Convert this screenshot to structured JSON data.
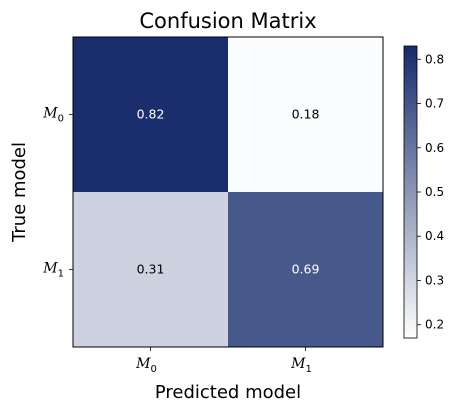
{
  "chart_data": {
    "type": "heatmap",
    "title": "Confusion Matrix",
    "xlabel": "Predicted model",
    "ylabel": "True model",
    "x_categories": [
      {
        "base": "M",
        "sub": "0"
      },
      {
        "base": "M",
        "sub": "1"
      }
    ],
    "y_categories": [
      {
        "base": "M",
        "sub": "0"
      },
      {
        "base": "M",
        "sub": "1"
      }
    ],
    "values": [
      [
        0.82,
        0.18
      ],
      [
        0.31,
        0.69
      ]
    ],
    "value_labels": [
      [
        "0.82",
        "0.18"
      ],
      [
        "0.31",
        "0.69"
      ]
    ],
    "colorbar": {
      "range": [
        0.17,
        0.83
      ],
      "ticks": [
        0.2,
        0.3,
        0.4,
        0.5,
        0.6,
        0.7,
        0.8
      ],
      "tick_labels": [
        "0.2",
        "0.3",
        "0.4",
        "0.5",
        "0.6",
        "0.7",
        "0.8"
      ]
    },
    "colors": {
      "low": "#ffffff",
      "high": "#162b6c",
      "text_light": "#ffffff",
      "text_dark": "#000000"
    }
  }
}
